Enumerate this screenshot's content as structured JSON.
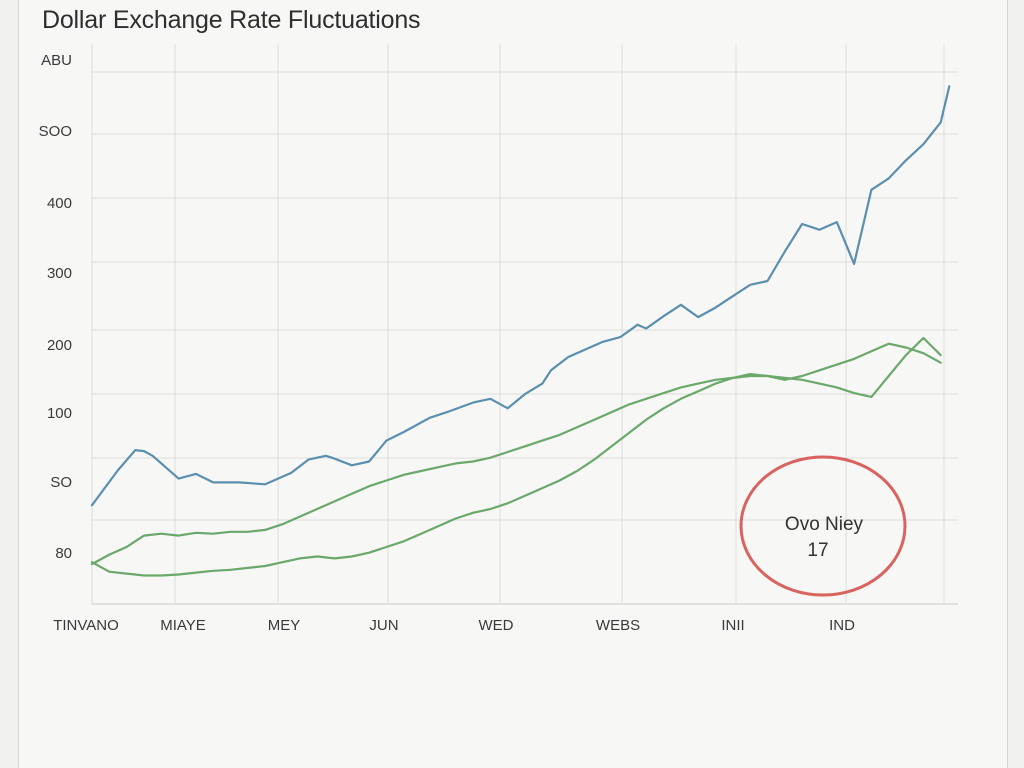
{
  "chart_data": {
    "type": "line",
    "title": "Dollar Exchange Rate Fluctuations",
    "xlabel": "",
    "ylabel": "",
    "y_tick_labels": [
      "ABU",
      "SOO",
      "400",
      "300",
      "200",
      "100",
      "SO",
      "80"
    ],
    "x_tick_labels": [
      "TINVANO",
      "MIAYE",
      "MEY",
      "JUN",
      "WED",
      "WEBS",
      "INII",
      "IND"
    ],
    "ylim": [
      0,
      560
    ],
    "xlim": [
      0,
      100
    ],
    "grid": true,
    "legend": "none",
    "series": [
      {
        "color": "#5b8fae",
        "x": [
          0,
          3,
          5,
          6,
          7,
          10,
          12,
          14,
          17,
          20,
          23,
          25,
          27,
          28,
          30,
          32,
          34,
          36,
          39,
          41,
          44,
          46,
          48,
          50,
          52,
          53,
          55,
          57,
          59,
          61,
          63,
          64,
          66,
          68,
          70,
          72,
          74,
          76,
          78,
          80,
          82,
          84,
          86,
          88,
          90,
          92,
          94,
          96,
          98,
          99
        ],
        "y": [
          104,
          141,
          162,
          161,
          156,
          132,
          137,
          128,
          128,
          126,
          138,
          152,
          156,
          153,
          146,
          150,
          172,
          181,
          196,
          202,
          212,
          216,
          206,
          221,
          232,
          246,
          260,
          268,
          276,
          281,
          294,
          290,
          303,
          315,
          302,
          312,
          324,
          336,
          340,
          371,
          400,
          394,
          402,
          358,
          436,
          448,
          467,
          484,
          507,
          545
        ]
      },
      {
        "color": "#6aa86b",
        "x": [
          0,
          2,
          4,
          6,
          8,
          10,
          12,
          14,
          16,
          18,
          20,
          22,
          24,
          26,
          28,
          30,
          32,
          34,
          36,
          38,
          40,
          42,
          44,
          46,
          48,
          50,
          52,
          54,
          56,
          58,
          60,
          62,
          64,
          66,
          68,
          70,
          72,
          74,
          76,
          78,
          80,
          82,
          84,
          86,
          88,
          90,
          92,
          94,
          96,
          98
        ],
        "y": [
          42,
          52,
          60,
          72,
          74,
          72,
          75,
          74,
          76,
          76,
          78,
          84,
          92,
          100,
          108,
          116,
          124,
          130,
          136,
          140,
          144,
          148,
          150,
          154,
          160,
          166,
          172,
          178,
          186,
          194,
          202,
          210,
          216,
          222,
          228,
          232,
          236,
          238,
          240,
          240,
          238,
          236,
          232,
          228,
          222,
          218,
          240,
          262,
          280,
          262
        ]
      },
      {
        "color": "#6aa86b",
        "x": [
          0,
          2,
          4,
          6,
          8,
          10,
          12,
          14,
          16,
          18,
          20,
          22,
          24,
          26,
          28,
          30,
          32,
          34,
          36,
          38,
          40,
          42,
          44,
          46,
          48,
          50,
          52,
          54,
          56,
          58,
          60,
          62,
          64,
          66,
          68,
          70,
          72,
          74,
          76,
          78,
          80,
          82,
          84,
          86,
          88,
          90,
          92,
          94,
          96,
          98
        ],
        "y": [
          44,
          34,
          32,
          30,
          30,
          31,
          33,
          35,
          36,
          38,
          40,
          44,
          48,
          50,
          48,
          50,
          54,
          60,
          66,
          74,
          82,
          90,
          96,
          100,
          106,
          114,
          122,
          130,
          140,
          152,
          166,
          180,
          194,
          206,
          216,
          224,
          232,
          238,
          242,
          240,
          236,
          240,
          246,
          252,
          258,
          266,
          274,
          270,
          264,
          254
        ]
      }
    ],
    "annotation": {
      "line1": "Ovo Niey",
      "line2": "17",
      "color": "#d9635f"
    }
  }
}
